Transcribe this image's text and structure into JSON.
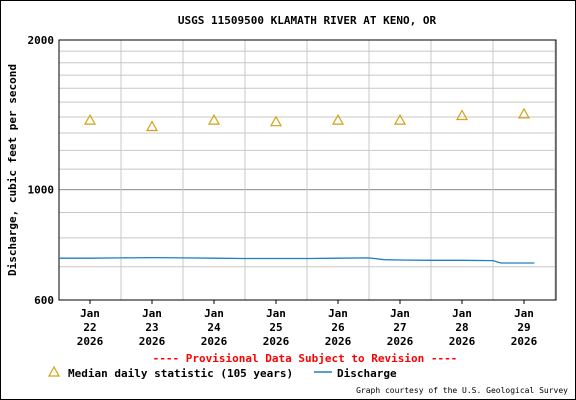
{
  "chart_data": {
    "type": "line",
    "title": "USGS 11509500 KLAMATH RIVER AT KENO, OR",
    "ylabel": "Discharge, cubic feet per second",
    "xlabel": "",
    "y_scale": "log",
    "ylim": [
      600,
      2000
    ],
    "y_ticks": [
      "600",
      "1000",
      "2000"
    ],
    "x_ticks": [
      {
        "date": "2026-01-22",
        "label": [
          "Jan",
          "22",
          "2026"
        ]
      },
      {
        "date": "2026-01-23",
        "label": [
          "Jan",
          "23",
          "2026"
        ]
      },
      {
        "date": "2026-01-24",
        "label": [
          "Jan",
          "24",
          "2026"
        ]
      },
      {
        "date": "2026-01-25",
        "label": [
          "Jan",
          "25",
          "2026"
        ]
      },
      {
        "date": "2026-01-26",
        "label": [
          "Jan",
          "26",
          "2026"
        ]
      },
      {
        "date": "2026-01-27",
        "label": [
          "Jan",
          "27",
          "2026"
        ]
      },
      {
        "date": "2026-01-28",
        "label": [
          "Jan",
          "28",
          "2026"
        ]
      },
      {
        "date": "2026-01-29",
        "label": [
          "Jan",
          "29",
          "2026"
        ]
      }
    ],
    "grid": true,
    "series": [
      {
        "name": "Median daily statistic (105 years)",
        "kind": "marker",
        "marker": "triangle",
        "color": "#d4a017",
        "points": [
          {
            "x": "2026-01-22T12:00",
            "y": 1380
          },
          {
            "x": "2026-01-23T12:00",
            "y": 1340
          },
          {
            "x": "2026-01-24T12:00",
            "y": 1380
          },
          {
            "x": "2026-01-25T12:00",
            "y": 1370
          },
          {
            "x": "2026-01-26T12:00",
            "y": 1380
          },
          {
            "x": "2026-01-27T12:00",
            "y": 1380
          },
          {
            "x": "2026-01-28T12:00",
            "y": 1410
          },
          {
            "x": "2026-01-29T12:00",
            "y": 1420
          }
        ]
      },
      {
        "name": "Discharge",
        "kind": "line",
        "color": "#1f7fc0",
        "points": [
          {
            "x": "2026-01-22T00:00",
            "y": 728
          },
          {
            "x": "2026-01-22T12:00",
            "y": 728
          },
          {
            "x": "2026-01-23T00:00",
            "y": 729
          },
          {
            "x": "2026-01-23T12:00",
            "y": 730
          },
          {
            "x": "2026-01-24T00:00",
            "y": 729
          },
          {
            "x": "2026-01-24T12:00",
            "y": 728
          },
          {
            "x": "2026-01-25T00:00",
            "y": 727
          },
          {
            "x": "2026-01-25T12:00",
            "y": 727
          },
          {
            "x": "2026-01-26T00:00",
            "y": 727
          },
          {
            "x": "2026-01-26T12:00",
            "y": 728
          },
          {
            "x": "2026-01-27T00:00",
            "y": 729
          },
          {
            "x": "2026-01-27T06:00",
            "y": 723
          },
          {
            "x": "2026-01-27T12:00",
            "y": 722
          },
          {
            "x": "2026-01-28T00:00",
            "y": 721
          },
          {
            "x": "2026-01-28T12:00",
            "y": 721
          },
          {
            "x": "2026-01-29T00:00",
            "y": 720
          },
          {
            "x": "2026-01-29T03:00",
            "y": 712
          },
          {
            "x": "2026-01-29T12:00",
            "y": 712
          },
          {
            "x": "2026-01-29T16:00",
            "y": 712
          }
        ]
      }
    ],
    "notice": "---- Provisional Data Subject to Revision ----",
    "notice_color": "#ff0000",
    "legend": [
      {
        "label": "Median daily statistic (105 years)",
        "symbol": "triangle"
      },
      {
        "label": "Discharge",
        "symbol": "line"
      }
    ],
    "legend_position": "bottom",
    "credit": "Graph courtesy of the U.S. Geological Survey",
    "colors": {
      "grid": "#c8c8c8",
      "axis": "#000000",
      "median": "#d4a017",
      "discharge": "#1f7fc0",
      "notice": "#ff0000"
    }
  }
}
